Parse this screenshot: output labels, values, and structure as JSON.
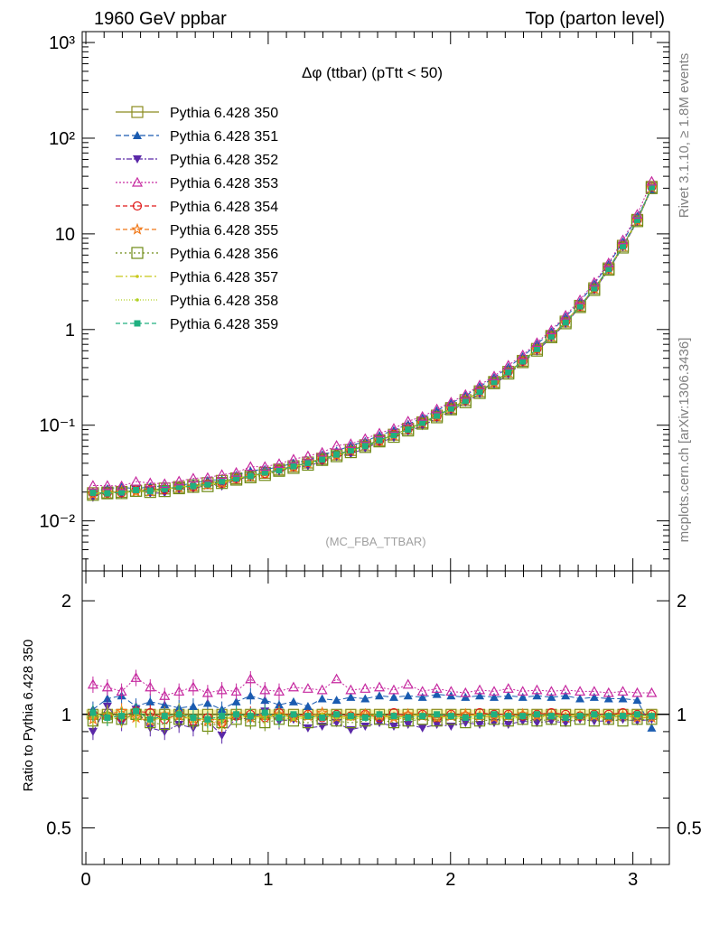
{
  "header": {
    "left": "1960 GeV ppbar",
    "right": "Top (parton level)"
  },
  "side": {
    "rivet": "Rivet 3.1.10, ≥ 1.8M events",
    "mcplots": "mcplots.cern.ch [arXiv:1306.3436]"
  },
  "plot_title": "Δφ (ttbar) (pTtt < 50)",
  "watermark": "(MC_FBA_TTBAR)",
  "ratio_ylabel": "Ratio to Pythia 6.428 350",
  "colors": {
    "s350": "#8b8b1e",
    "s351": "#1a5bb0",
    "s352": "#5a28a8",
    "s353": "#c62aa0",
    "s354": "#e01a1a",
    "s355": "#f07818",
    "s356": "#6e8a14",
    "s357": "#c8c818",
    "s358": "#b0d020",
    "s359": "#20b080",
    "band": "#f2f2a0"
  },
  "chart_data": {
    "type": "line",
    "title": "Δφ (ttbar) (pTtt < 50)",
    "xlabel": "",
    "ylabel": "",
    "xlim": [
      -0.02,
      3.2
    ],
    "ylim": [
      0.003,
      1300
    ],
    "yscale": "log",
    "xticks": [
      "0",
      "1",
      "2",
      "3"
    ],
    "yticks": [
      "10⁻²",
      "10⁻¹",
      "1",
      "10",
      "10²",
      "10³"
    ],
    "reference": {
      "x": [
        0.039,
        0.118,
        0.196,
        0.275,
        0.353,
        0.432,
        0.511,
        0.589,
        0.668,
        0.746,
        0.825,
        0.903,
        0.982,
        1.06,
        1.139,
        1.218,
        1.296,
        1.375,
        1.453,
        1.532,
        1.61,
        1.689,
        1.767,
        1.846,
        1.925,
        2.003,
        2.082,
        2.16,
        2.239,
        2.317,
        2.396,
        2.474,
        2.553,
        2.631,
        2.71,
        2.788,
        2.867,
        2.945,
        3.024,
        3.103
      ],
      "values": [
        0.0195,
        0.0198,
        0.0201,
        0.0206,
        0.0211,
        0.0218,
        0.0226,
        0.0236,
        0.0248,
        0.0262,
        0.0278,
        0.0297,
        0.0318,
        0.0344,
        0.0373,
        0.0407,
        0.0447,
        0.0494,
        0.055,
        0.0617,
        0.0698,
        0.0796,
        0.0917,
        0.107,
        0.126,
        0.151,
        0.183,
        0.226,
        0.283,
        0.361,
        0.47,
        0.627,
        0.857,
        1.21,
        1.77,
        2.7,
        4.35,
        7.5,
        14.0,
        31.0
      ]
    },
    "series": [
      {
        "name": "Pythia 6.428 350",
        "marker": "square-open",
        "dash": "solid",
        "color_key": "s350",
        "ratio": [
          1,
          1,
          1,
          1,
          1,
          1,
          1,
          1,
          1,
          1,
          1,
          1,
          1,
          1,
          1,
          1,
          1,
          1,
          1,
          1,
          1,
          1,
          1,
          1,
          1,
          1,
          1,
          1,
          1,
          1,
          1,
          1,
          1,
          1,
          1,
          1,
          1,
          1,
          1,
          1
        ]
      },
      {
        "name": "Pythia 6.428 351",
        "marker": "triangle-up",
        "dash": "6,3",
        "color_key": "s351",
        "ratio": [
          1.03,
          1.1,
          1.12,
          1.05,
          1.08,
          1.06,
          1.04,
          1.05,
          1.07,
          1.03,
          1.08,
          1.12,
          1.09,
          1.06,
          1.08,
          1.05,
          1.1,
          1.09,
          1.11,
          1.1,
          1.12,
          1.11,
          1.12,
          1.11,
          1.13,
          1.12,
          1.11,
          1.12,
          1.11,
          1.12,
          1.11,
          1.12,
          1.11,
          1.12,
          1.1,
          1.11,
          1.1,
          1.1,
          1.09,
          0.92
        ]
      },
      {
        "name": "Pythia 6.428 352",
        "marker": "triangle-down",
        "dash": "6,2,2,2",
        "color_key": "s352",
        "ratio": [
          0.9,
          1.05,
          0.95,
          1.03,
          0.92,
          0.9,
          0.94,
          0.92,
          0.96,
          0.88,
          0.98,
          0.97,
          1.02,
          0.96,
          0.97,
          0.92,
          0.93,
          0.95,
          0.91,
          0.93,
          0.95,
          0.93,
          0.94,
          0.92,
          0.94,
          0.93,
          0.95,
          0.94,
          0.95,
          0.94,
          0.96,
          0.95,
          0.96,
          0.95,
          0.97,
          0.96,
          0.96,
          0.97,
          0.96,
          0.97
        ]
      },
      {
        "name": "Pythia 6.428 353",
        "marker": "triangle-up-open",
        "dash": "2,2",
        "color_key": "s353",
        "ratio": [
          1.2,
          1.18,
          1.15,
          1.25,
          1.18,
          1.12,
          1.15,
          1.18,
          1.14,
          1.16,
          1.15,
          1.24,
          1.16,
          1.15,
          1.18,
          1.17,
          1.16,
          1.24,
          1.16,
          1.17,
          1.18,
          1.16,
          1.2,
          1.15,
          1.17,
          1.15,
          1.14,
          1.16,
          1.15,
          1.17,
          1.15,
          1.16,
          1.15,
          1.16,
          1.15,
          1.15,
          1.14,
          1.15,
          1.14,
          1.14
        ]
      },
      {
        "name": "Pythia 6.428 354",
        "marker": "circle-open",
        "dash": "5,3",
        "color_key": "s354",
        "ratio": [
          1.0,
          0.99,
          0.98,
          1.02,
          1.01,
          0.97,
          1.0,
          0.96,
          0.98,
          0.95,
          0.99,
          1.0,
          0.98,
          1.01,
          0.99,
          1.0,
          0.98,
          1.0,
          0.99,
          1.0,
          0.98,
          1.01,
          0.99,
          1.0,
          0.98,
          1.0,
          0.99,
          1.01,
          1.0,
          1.0,
          0.99,
          1.0,
          1.01,
          1.0,
          0.99,
          1.0,
          1.0,
          1.01,
          1.0,
          1.0
        ]
      },
      {
        "name": "Pythia 6.428 355",
        "marker": "star-open",
        "dash": "5,3",
        "color_key": "s355",
        "ratio": [
          0.97,
          1.0,
          1.02,
          0.98,
          0.96,
          1.0,
          0.99,
          0.97,
          0.96,
          0.94,
          1.0,
          0.98,
          0.99,
          1.0,
          0.98,
          0.99,
          1.01,
          0.98,
          0.99,
          1.0,
          0.99,
          0.98,
          1.0,
          0.99,
          0.98,
          0.99,
          1.0,
          0.99,
          0.98,
          0.99,
          1.0,
          0.99,
          0.99,
          0.98,
          0.99,
          0.99,
          0.98,
          0.99,
          0.98,
          0.98
        ]
      },
      {
        "name": "Pythia 6.428 356",
        "marker": "square-open",
        "dash": "2,3",
        "color_key": "s356",
        "ratio": [
          0.96,
          0.98,
          0.97,
          1.0,
          0.95,
          0.94,
          0.97,
          0.96,
          0.93,
          0.95,
          0.97,
          0.96,
          0.95,
          0.97,
          0.96,
          0.95,
          0.97,
          0.96,
          0.95,
          0.96,
          0.97,
          0.95,
          0.96,
          0.97,
          0.96,
          0.97,
          0.95,
          0.96,
          0.97,
          0.96,
          0.97,
          0.96,
          0.97,
          0.96,
          0.97,
          0.96,
          0.97,
          0.96,
          0.97,
          0.97
        ]
      },
      {
        "name": "Pythia 6.428 357",
        "marker": "dot",
        "dash": "8,3,2,3",
        "color_key": "s357",
        "ratio": [
          0.99,
          1.01,
          0.97,
          1.0,
          0.98,
          0.97,
          1.02,
          0.96,
          0.98,
          0.96,
          1.0,
          0.99,
          0.98,
          1.0,
          0.99,
          0.98,
          1.0,
          0.99,
          0.98,
          0.99,
          1.0,
          0.98,
          0.99,
          1.0,
          0.99,
          0.98,
          0.99,
          1.0,
          0.99,
          0.98,
          0.99,
          1.0,
          0.99,
          0.99,
          1.0,
          0.99,
          0.99,
          1.0,
          0.99,
          0.99
        ]
      },
      {
        "name": "Pythia 6.428 358",
        "marker": "dot",
        "dash": "1,2",
        "color_key": "s358",
        "ratio": [
          0.98,
          0.99,
          1.0,
          0.97,
          0.96,
          0.98,
          0.99,
          0.97,
          0.95,
          0.96,
          0.99,
          0.98,
          0.99,
          0.98,
          0.97,
          0.98,
          0.99,
          0.98,
          0.97,
          0.98,
          0.99,
          0.98,
          0.97,
          0.98,
          0.99,
          0.98,
          0.97,
          0.98,
          0.99,
          0.98,
          0.98,
          0.99,
          0.98,
          0.98,
          0.99,
          0.98,
          0.98,
          0.99,
          0.98,
          0.98
        ]
      },
      {
        "name": "Pythia 6.428 359",
        "marker": "square-filled",
        "dash": "5,3",
        "color_key": "s359",
        "ratio": [
          1.01,
          0.98,
          0.99,
          1.02,
          0.97,
          0.99,
          1.0,
          0.98,
          0.97,
          0.99,
          1.0,
          0.99,
          1.01,
          0.98,
          1.0,
          0.99,
          0.98,
          1.0,
          0.99,
          0.98,
          1.0,
          0.99,
          0.98,
          0.99,
          1.0,
          0.99,
          0.98,
          0.99,
          1.0,
          0.99,
          0.99,
          1.0,
          0.99,
          0.98,
          0.99,
          1.0,
          0.99,
          0.99,
          1.0,
          0.99
        ]
      }
    ],
    "ratio_panel": {
      "ylabel": "Ratio to Pythia 6.428 350",
      "ylim": [
        0.4,
        2.4
      ],
      "yscale": "log",
      "yticks": [
        "0.5",
        "1",
        "2"
      ]
    }
  }
}
